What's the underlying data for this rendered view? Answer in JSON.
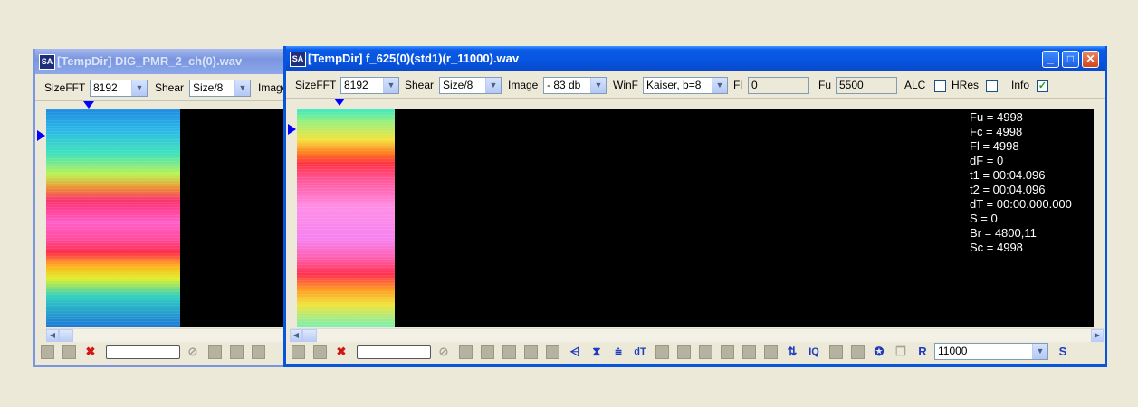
{
  "back_window": {
    "app_icon": "SA",
    "title": "[TempDir] DIG_PMR_2_ch(0).wav",
    "toolbar": {
      "sizefft_label": "SizeFFT",
      "sizefft_value": "8192",
      "shear_label": "Shear",
      "shear_value": "Size/8",
      "image_label": "Image"
    }
  },
  "front_window": {
    "app_icon": "SA",
    "title": "[TempDir] f_625(0)(std1)(r_11000).wav",
    "toolbar": {
      "sizefft_label": "SizeFFT",
      "sizefft_value": "8192",
      "shear_label": "Shear",
      "shear_value": "Size/8",
      "image_label": "Image",
      "image_value": "- 83 db",
      "winf_label": "WinF",
      "winf_value": "Kaiser, b=8",
      "fl_label": "Fl",
      "fl_value": "0",
      "fu_label": "Fu",
      "fu_value": "5500",
      "alc_label": "ALC",
      "alc_checked": false,
      "hres_label": "HRes",
      "hres_checked": false,
      "info_label": "Info",
      "info_checked": true
    },
    "info_lines": [
      "Fu = 4998",
      "Fc = 4998",
      "Fl = 4998",
      "dF = 0",
      "t1 = 00:04.096",
      "t2 = 00:04.096",
      "dT = 00:00.000.000",
      "S = 0",
      "Br = 4800,11",
      "Sc = 4998"
    ],
    "bottom": {
      "rate_value": "11000",
      "dt_label": "dT",
      "iq_label": "IQ",
      "r_label": "R",
      "s_label": "S"
    }
  },
  "colors": {
    "desktop": "#ECE9D8",
    "titlebar_active": "#0754E0",
    "titlebar_inactive": "#7A96DF",
    "canvas": "#000000",
    "marker": "#0000FF"
  }
}
